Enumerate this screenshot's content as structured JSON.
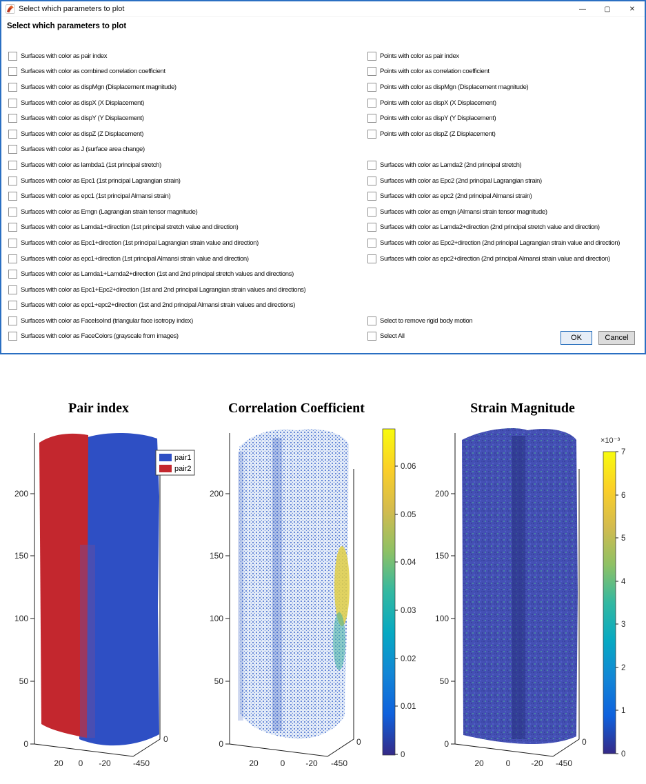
{
  "dialog": {
    "title": "Select which parameters to plot",
    "heading": "Select which parameters to plot",
    "window_controls": {
      "minimize": "—",
      "maximize": "▢",
      "close": "✕"
    },
    "rows": [
      {
        "left": "Surfaces with color as pair index",
        "right": "Points with color as pair index"
      },
      {
        "left": "Surfaces with color as combined correlation coefficient",
        "right": "Points with color as correlation coefficient"
      },
      {
        "left": "Surfaces with color as dispMgn (Displacement magnitude)",
        "right": "Points with color as dispMgn (Displacement magnitude)"
      },
      {
        "left": "Surfaces with color as dispX (X Displacement)",
        "right": "Points with color as dispX (X Displacement)"
      },
      {
        "left": "Surfaces with color as dispY (Y Displacement)",
        "right": "Points with color as dispY (Y Displacement)"
      },
      {
        "left": "Surfaces with color as dispZ (Z Displacement)",
        "right": "Points with color as dispZ (Z Displacement)"
      },
      {
        "left": "Surfaces with color as J (surface area change)",
        "right": null
      },
      {
        "left": "Surfaces with color as lambda1 (1st principal stretch)",
        "right": "Surfaces with color as Lamda2 (2nd principal stretch)"
      },
      {
        "left": "Surfaces with color as Epc1 (1st principal Lagrangian strain)",
        "right": "Surfaces with color as Epc2 (2nd principal Lagrangian strain)"
      },
      {
        "left": "Surfaces with color as epc1 (1st principal Almansi strain)",
        "right": "Surfaces with color as epc2 (2nd principal Almansi strain)"
      },
      {
        "left": "Surfaces with color as Emgn (Lagrangian strain tensor magnitude)",
        "right": "Surfaces with color as emgn (Almansi strain tensor magnitude)"
      },
      {
        "left": "Surfaces with color as Lamda1+direction (1st principal stretch value and direction)",
        "right": "Surfaces with color as Lamda2+direction (2nd principal stretch value and direction)"
      },
      {
        "left": "Surfaces with color as Epc1+direction (1st principal Lagrangian strain value and direction)",
        "right": "Surfaces with color as Epc2+direction (2nd principal Lagrangian strain value and direction)"
      },
      {
        "left": "Surfaces with color as epc1+direction (1st principal Almansi strain value and direction)",
        "right": "Surfaces with color as epc2+direction (2nd principal Almansi strain value and direction)"
      },
      {
        "left": "Surfaces with color as Lamda1+Lamda2+direction (1st and 2nd principal stretch values and directions)",
        "right": null
      },
      {
        "left": "Surfaces with color as Epc1+Epc2+direction (1st and 2nd principal Lagrangian strain values and directions)",
        "right": null
      },
      {
        "left": "Surfaces with color as epc1+epc2+direction (1st and 2nd principal Almansi strain values and directions)",
        "right": null
      },
      {
        "left": "Surfaces with color as FaceIsoInd (triangular face isotropy index)",
        "right": "Select to remove rigid body motion"
      },
      {
        "left": "Surfaces with color as FaceColors (grayscale from images)",
        "right": "Select All"
      }
    ],
    "buttons": {
      "ok": "OK",
      "cancel": "Cancel"
    }
  },
  "figures": [
    {
      "type": "3d-surface",
      "title": "Pair index",
      "yticks": [
        "200",
        "150",
        "100",
        "50",
        "0"
      ],
      "xticks": [
        "20",
        "0",
        "-20",
        "-450"
      ],
      "right_tick": "0",
      "legend": [
        {
          "label": "pair1",
          "color": "#2e4fc4"
        },
        {
          "label": "pair2",
          "color": "#c3272e"
        }
      ]
    },
    {
      "type": "3d-scatter",
      "title": "Correlation Coefficient",
      "yticks": [
        "200",
        "150",
        "100",
        "50",
        "0"
      ],
      "xticks": [
        "20",
        "0",
        "-20",
        "-450"
      ],
      "right_tick": "0",
      "colorbar": {
        "ticks": [
          "0.06",
          "0.05",
          "0.04",
          "0.03",
          "0.02",
          "0.01",
          "0"
        ],
        "colormap": "parula",
        "min": 0,
        "max": 0.06
      }
    },
    {
      "type": "3d-surface",
      "title": "Strain Magnitude",
      "yticks": [
        "200",
        "150",
        "100",
        "50",
        "0"
      ],
      "xticks": [
        "20",
        "0",
        "-20",
        "-450"
      ],
      "right_tick": "0",
      "colorbar": {
        "exponent": "×10⁻³",
        "ticks": [
          "7",
          "6",
          "5",
          "4",
          "3",
          "2",
          "1",
          "0"
        ],
        "colormap": "parula",
        "min": 0,
        "max": 7
      }
    }
  ]
}
